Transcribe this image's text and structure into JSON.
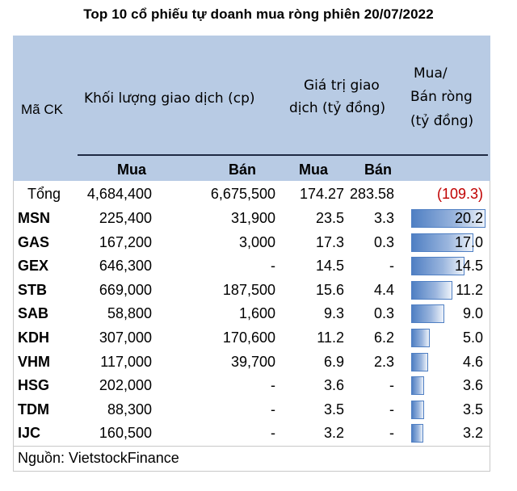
{
  "title": "Top 10 cổ phiếu tự doanh mua ròng phiên 20/07/2022",
  "headers": {
    "code": "Mã CK",
    "volume": "Khối lượng giao dịch (cp)",
    "value_line1": "Giá trị giao",
    "value_line2": "dịch (tỷ đồng)",
    "net_line1": "Mua/",
    "net_line2": "Bán ròng",
    "net_line3": "(tỷ đồng)",
    "buy": "Mua",
    "sell": "Bán",
    "buy2": "Mua",
    "sell2": "Bán"
  },
  "total": {
    "label": "Tổng",
    "vol_buy": "4,684,400",
    "vol_sell": "6,675,500",
    "val_buy": "174.27",
    "val_sell": "283.58",
    "net": "(109.3)"
  },
  "rows": [
    {
      "code": "MSN",
      "vol_buy": "225,400",
      "vol_sell": "31,900",
      "val_buy": "23.5",
      "val_sell": "3.3",
      "net": "20.2",
      "net_value": 20.2
    },
    {
      "code": "GAS",
      "vol_buy": "167,200",
      "vol_sell": "3,000",
      "val_buy": "17.3",
      "val_sell": "0.3",
      "net": "17.0",
      "net_value": 17.0
    },
    {
      "code": "GEX",
      "vol_buy": "646,300",
      "vol_sell": "-",
      "val_buy": "14.5",
      "val_sell": "-",
      "net": "14.5",
      "net_value": 14.5
    },
    {
      "code": "STB",
      "vol_buy": "669,000",
      "vol_sell": "187,500",
      "val_buy": "15.6",
      "val_sell": "4.4",
      "net": "11.2",
      "net_value": 11.2
    },
    {
      "code": "SAB",
      "vol_buy": "58,800",
      "vol_sell": "1,600",
      "val_buy": "9.3",
      "val_sell": "0.3",
      "net": "9.0",
      "net_value": 9.0
    },
    {
      "code": "KDH",
      "vol_buy": "307,000",
      "vol_sell": "170,600",
      "val_buy": "11.2",
      "val_sell": "6.2",
      "net": "5.0",
      "net_value": 5.0
    },
    {
      "code": "VHM",
      "vol_buy": "117,000",
      "vol_sell": "39,700",
      "val_buy": "6.9",
      "val_sell": "2.3",
      "net": "4.6",
      "net_value": 4.6
    },
    {
      "code": "HSG",
      "vol_buy": "202,000",
      "vol_sell": "-",
      "val_buy": "3.6",
      "val_sell": "-",
      "net": "3.6",
      "net_value": 3.6
    },
    {
      "code": "TDM",
      "vol_buy": "88,300",
      "vol_sell": "-",
      "val_buy": "3.5",
      "val_sell": "-",
      "net": "3.5",
      "net_value": 3.5
    },
    {
      "code": "IJC",
      "vol_buy": "160,500",
      "vol_sell": "-",
      "val_buy": "3.2",
      "val_sell": "-",
      "net": "3.2",
      "net_value": 3.2
    }
  ],
  "source": "Nguồn: VietstockFinance",
  "colors": {
    "header_bg": "#b8cbe4",
    "bar": "#4f7fc3",
    "negative": "#c00000"
  }
}
